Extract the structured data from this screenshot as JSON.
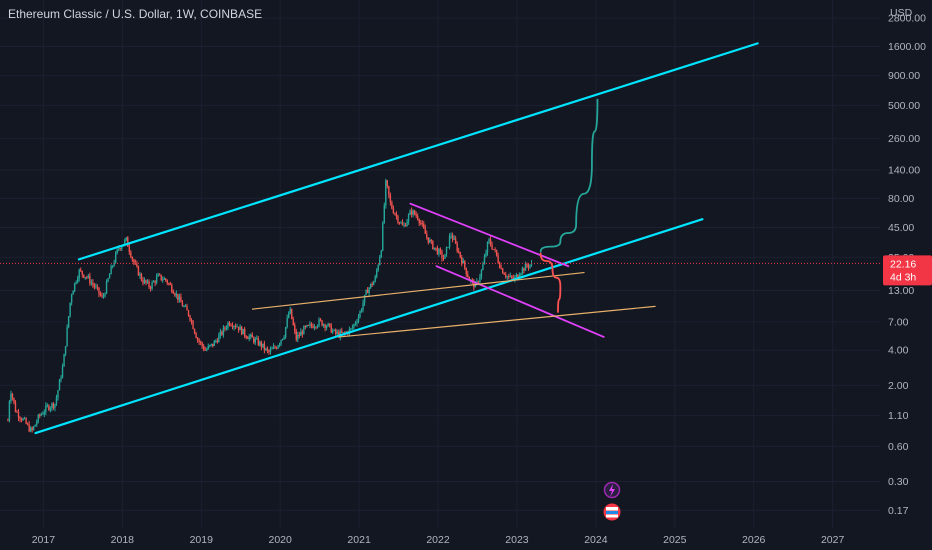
{
  "header": {
    "title": "Ethereum Classic / U.S. Dollar, 1W, COINBASE"
  },
  "colors": {
    "background": "#131722",
    "up_candle": "#26a69a",
    "down_candle": "#ef5350",
    "channel_lines": "#00e5ff",
    "wedge_lines": "#e040fb",
    "support_lines": "#e8b06a",
    "projection_green": "#26a69a",
    "projection_red": "#ff5252",
    "price_tag": "#f23645"
  },
  "chart_data": {
    "type": "candlestick",
    "title": "Ethereum Classic / U.S. Dollar, 1W, COINBASE",
    "y_axis_unit": "USD",
    "y_scale": "log",
    "ylim": [
      0.12,
      4000
    ],
    "xlim": [
      2016.45,
      2027.6
    ],
    "y_ticks": [
      "2800.00",
      "1600.00",
      "900.00",
      "500.00",
      "260.00",
      "140.00",
      "80.00",
      "45.00",
      "25.00",
      "13.00",
      "7.00",
      "4.00",
      "2.00",
      "1.10",
      "0.60",
      "0.30",
      "0.17"
    ],
    "x_ticks": [
      "2017",
      "2018",
      "2019",
      "2020",
      "2021",
      "2022",
      "2023",
      "2024",
      "2025",
      "2026",
      "2027"
    ],
    "current_price": {
      "label": "22.16",
      "countdown": "4d 3h",
      "value": 22.16
    },
    "price_anchors": [
      [
        2016.55,
        1.0
      ],
      [
        2016.58,
        1.9
      ],
      [
        2016.65,
        1.2
      ],
      [
        2016.75,
        1.0
      ],
      [
        2016.85,
        0.8
      ],
      [
        2016.95,
        1.1
      ],
      [
        2017.05,
        1.3
      ],
      [
        2017.15,
        1.4
      ],
      [
        2017.25,
        3.0
      ],
      [
        2017.35,
        12.0
      ],
      [
        2017.45,
        19.0
      ],
      [
        2017.55,
        17.0
      ],
      [
        2017.65,
        14.0
      ],
      [
        2017.75,
        11.0
      ],
      [
        2017.85,
        19.0
      ],
      [
        2017.95,
        30.0
      ],
      [
        2018.05,
        35.0
      ],
      [
        2018.15,
        22.0
      ],
      [
        2018.25,
        16.0
      ],
      [
        2018.35,
        14.0
      ],
      [
        2018.45,
        17.0
      ],
      [
        2018.55,
        16.0
      ],
      [
        2018.65,
        13.0
      ],
      [
        2018.75,
        10.0
      ],
      [
        2018.85,
        8.0
      ],
      [
        2018.95,
        5.0
      ],
      [
        2019.05,
        4.0
      ],
      [
        2019.15,
        4.5
      ],
      [
        2019.25,
        5.5
      ],
      [
        2019.35,
        7.0
      ],
      [
        2019.45,
        6.5
      ],
      [
        2019.55,
        5.5
      ],
      [
        2019.65,
        5.0
      ],
      [
        2019.75,
        4.5
      ],
      [
        2019.85,
        3.8
      ],
      [
        2019.95,
        4.3
      ],
      [
        2020.05,
        5.5
      ],
      [
        2020.12,
        9.0
      ],
      [
        2020.2,
        5.0
      ],
      [
        2020.3,
        6.0
      ],
      [
        2020.4,
        6.5
      ],
      [
        2020.5,
        7.0
      ],
      [
        2020.6,
        6.5
      ],
      [
        2020.7,
        5.5
      ],
      [
        2020.8,
        5.5
      ],
      [
        2020.9,
        6.0
      ],
      [
        2021.0,
        8.0
      ],
      [
        2021.1,
        13.0
      ],
      [
        2021.2,
        16.0
      ],
      [
        2021.28,
        30.0
      ],
      [
        2021.34,
        110.0
      ],
      [
        2021.4,
        70.0
      ],
      [
        2021.48,
        55.0
      ],
      [
        2021.56,
        45.0
      ],
      [
        2021.66,
        62.0
      ],
      [
        2021.75,
        55.0
      ],
      [
        2021.85,
        38.0
      ],
      [
        2021.92,
        32.0
      ],
      [
        2022.0,
        28.0
      ],
      [
        2022.08,
        24.0
      ],
      [
        2022.16,
        40.0
      ],
      [
        2022.24,
        30.0
      ],
      [
        2022.32,
        22.0
      ],
      [
        2022.4,
        16.0
      ],
      [
        2022.48,
        14.0
      ],
      [
        2022.56,
        20.0
      ],
      [
        2022.64,
        35.0
      ],
      [
        2022.72,
        28.0
      ],
      [
        2022.8,
        20.0
      ],
      [
        2022.88,
        17.0
      ],
      [
        2022.96,
        16.0
      ],
      [
        2023.04,
        19.0
      ],
      [
        2023.12,
        21.0
      ],
      [
        2023.2,
        22.16
      ]
    ],
    "annotations": [
      {
        "name": "channel-upper",
        "color": "#00e5ff",
        "points": [
          [
            2017.45,
            24.0
          ],
          [
            2026.05,
            1700.0
          ]
        ]
      },
      {
        "name": "channel-lower",
        "color": "#00e5ff",
        "points": [
          [
            2016.9,
            0.78
          ],
          [
            2025.35,
            53.0
          ]
        ]
      },
      {
        "name": "wedge-upper",
        "color": "#e040fb",
        "points": [
          [
            2021.65,
            72.0
          ],
          [
            2023.65,
            21.0
          ]
        ]
      },
      {
        "name": "wedge-lower",
        "color": "#e040fb",
        "points": [
          [
            2021.98,
            21.0
          ],
          [
            2024.1,
            5.2
          ]
        ]
      },
      {
        "name": "support-upper",
        "color": "#e8b06a",
        "points": [
          [
            2019.65,
            9.0
          ],
          [
            2023.85,
            18.5
          ]
        ]
      },
      {
        "name": "support-lower",
        "color": "#e8b06a",
        "points": [
          [
            2020.75,
            5.2
          ],
          [
            2024.75,
            9.5
          ]
        ]
      }
    ],
    "projections": [
      {
        "name": "bull-projection",
        "color": "#26a69a",
        "points": [
          [
            2023.3,
            28.0
          ],
          [
            2023.55,
            34.0
          ],
          [
            2023.75,
            48.0
          ],
          [
            2023.95,
            160.0
          ],
          [
            2024.02,
            560.0
          ]
        ]
      },
      {
        "name": "bear-projection",
        "color": "#ff5252",
        "points": [
          [
            2023.3,
            27.0
          ],
          [
            2023.45,
            20.0
          ],
          [
            2023.55,
            14.0
          ],
          [
            2023.52,
            8.5
          ]
        ]
      }
    ]
  }
}
